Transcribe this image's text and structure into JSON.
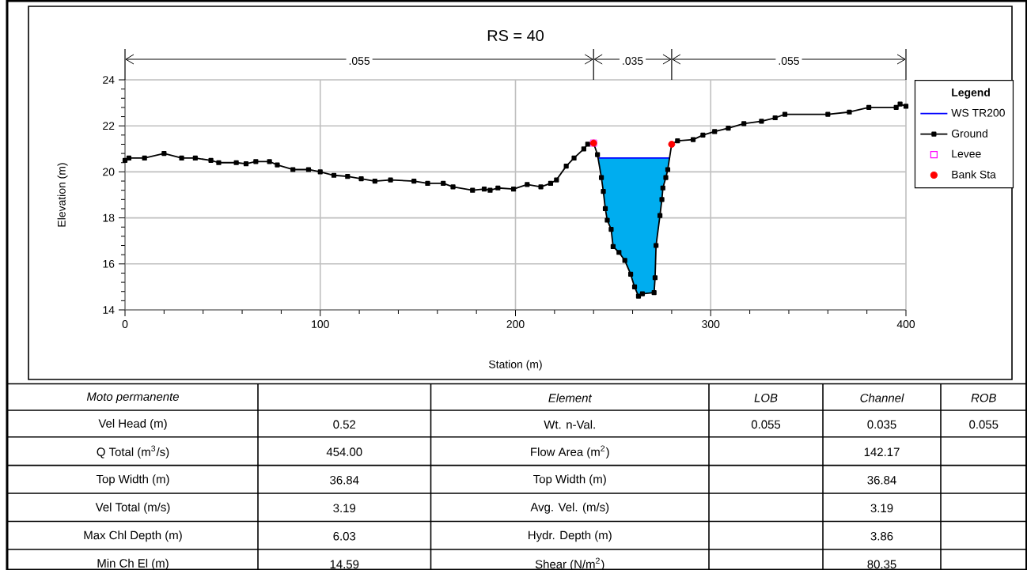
{
  "chart_data": {
    "type": "line",
    "title": "RS = 40",
    "xlabel": "Station (m)",
    "ylabel": "Elevation (m)",
    "legend_title": "Legend",
    "legend": "right",
    "grid": true,
    "xlim": [
      0,
      400
    ],
    "xticks": [
      0,
      100,
      200,
      300,
      400
    ],
    "ylim": [
      14,
      24
    ],
    "yticks": [
      14,
      16,
      18,
      20,
      22,
      24
    ],
    "series": [
      {
        "name": "WS TR200",
        "color": "#0000ff",
        "x": [
          242.5,
          244,
          245,
          246,
          247,
          249,
          250,
          253,
          256,
          259,
          261,
          263,
          265,
          271,
          271.5,
          272,
          274,
          275,
          275.5,
          277,
          278,
          279
        ],
        "values": [
          20.6,
          20.6,
          20.6,
          20.6,
          20.6,
          20.6,
          20.6,
          20.6,
          20.6,
          20.6,
          20.6,
          20.6,
          20.6,
          20.6,
          20.6,
          20.6,
          20.6,
          20.6,
          20.6,
          20.6,
          20.6,
          20.6
        ],
        "lower": [
          20.6,
          19.75,
          19.15,
          18.4,
          17.9,
          17.5,
          16.75,
          16.5,
          16.15,
          15.55,
          15.0,
          14.6,
          14.7,
          14.75,
          15.4,
          16.8,
          18.1,
          18.8,
          19.3,
          19.75,
          20.1,
          20.6
        ],
        "upper": [
          20.6,
          20.6,
          20.6,
          20.6,
          20.6,
          20.6,
          20.6,
          20.6,
          20.6,
          20.6,
          20.6,
          20.6,
          20.6,
          20.6,
          20.6,
          20.6,
          20.6,
          20.6,
          20.6,
          20.6,
          20.6,
          20.6
        ]
      },
      {
        "name": "Ground",
        "color": "#000000",
        "marker": "square",
        "x": [
          0,
          2,
          10,
          20,
          29,
          36,
          44,
          48,
          57,
          62,
          67,
          74,
          78,
          86,
          94,
          100,
          107,
          114,
          121,
          128,
          136,
          148,
          155,
          163,
          168,
          178,
          184,
          187,
          191,
          199,
          206,
          213,
          218,
          221,
          226,
          230,
          235,
          237,
          240,
          242,
          244,
          245,
          246,
          247,
          249,
          250,
          253,
          256,
          259,
          261,
          263,
          265,
          271,
          271.5,
          272,
          274,
          275,
          275.5,
          277,
          278,
          280,
          283,
          291,
          296,
          302,
          309,
          317,
          326,
          333,
          338,
          360,
          371,
          381,
          395,
          397,
          400
        ],
        "values": [
          20.5,
          20.6,
          20.6,
          20.8,
          20.6,
          20.6,
          20.5,
          20.4,
          20.4,
          20.35,
          20.45,
          20.45,
          20.3,
          20.1,
          20.1,
          20.0,
          19.85,
          19.8,
          19.7,
          19.6,
          19.65,
          19.6,
          19.5,
          19.5,
          19.35,
          19.2,
          19.25,
          19.2,
          19.3,
          19.25,
          19.45,
          19.35,
          19.5,
          19.65,
          20.25,
          20.6,
          21.0,
          21.2,
          21.25,
          20.75,
          19.75,
          19.15,
          18.4,
          17.9,
          17.5,
          16.75,
          16.5,
          16.15,
          15.55,
          15.0,
          14.6,
          14.7,
          14.75,
          15.4,
          16.8,
          18.1,
          18.8,
          19.3,
          19.75,
          20.1,
          21.2,
          21.35,
          21.4,
          21.6,
          21.75,
          21.9,
          22.1,
          22.2,
          22.35,
          22.5,
          22.5,
          22.6,
          22.8,
          22.8,
          22.95,
          22.85
        ]
      },
      {
        "name": "Levee",
        "type": "scatter",
        "color": "#ff00ff",
        "marker": "square",
        "x": [
          240
        ],
        "values": [
          21.25
        ]
      },
      {
        "name": "Bank Sta",
        "type": "scatter",
        "color": "#ff0000",
        "marker": "circle",
        "x": [
          240,
          280
        ],
        "values": [
          21.25,
          21.2
        ]
      }
    ],
    "annotations": [
      ".055",
      ".035",
      ".055",
      "Moto permanente",
      "Element",
      "LOB",
      "Channel",
      "ROB",
      "Vel Head (m)",
      "0.52",
      "Wt. n-Val.",
      "0.055",
      "0.035",
      "0.055",
      "Q Total (m$^{3}$/s)",
      "454.00",
      "Flow Area (m$^{2}$)",
      "142.17",
      "Top Width (m)",
      "36.84",
      "Top Width (m)",
      "36.84",
      "Vel Total (m/s)",
      "3.19",
      "Avg. Vel. (m/s)",
      "3.19",
      "Max Chl Depth (m)",
      "6.03",
      "Hydr. Depth (m)",
      "3.86",
      "Min Ch El (m)",
      "14.59",
      "Shear (N/m$^{2}$)",
      "80.35"
    ]
  }
}
